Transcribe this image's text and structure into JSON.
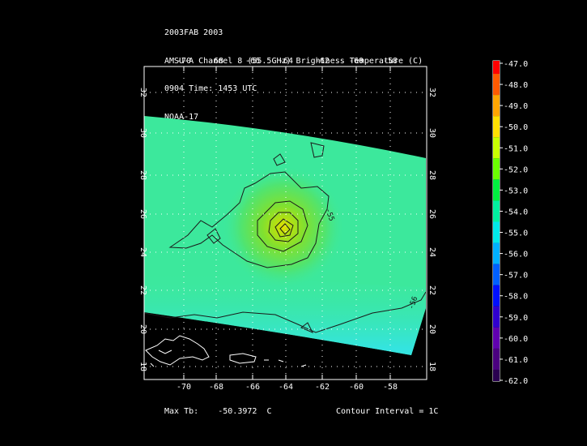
{
  "header": {
    "line1": "2003FAB 2003",
    "line2": "AMSU-A Channel 8 (55.5GHz) Brightness Temperature (C)",
    "line3": "0904 Time: 1453 UTC",
    "line4": "NOAA-17"
  },
  "map": {
    "lon_ticks": [
      "-70",
      "-68",
      "-66",
      "-64",
      "-62",
      "-60",
      "-58"
    ],
    "lat_ticks": [
      "18",
      "20",
      "22",
      "24",
      "26",
      "28",
      "30",
      "32"
    ],
    "contour_labels": [
      "-55",
      "-56"
    ],
    "field_colors": {
      "background": "#3be8a0",
      "core": "#8ce020",
      "peak": "#e8e000",
      "cool_south": "#36e6e6"
    }
  },
  "colorbar": {
    "labels": [
      "-47.0",
      "-48.0",
      "-49.0",
      "-50.0",
      "-51.0",
      "-52.0",
      "-53.0",
      "-54.0",
      "-55.0",
      "-56.0",
      "-57.0",
      "-58.0",
      "-59.0",
      "-60.0",
      "-61.0",
      "-62.0"
    ],
    "colors": [
      "#ff0000",
      "#ff5a00",
      "#ffa500",
      "#ffe000",
      "#c8ff00",
      "#6aff00",
      "#00f040",
      "#00f0a0",
      "#00e8e8",
      "#00b0ff",
      "#0060ff",
      "#0010ff",
      "#3000d0",
      "#6000b0",
      "#4a0080",
      "#2a0050"
    ]
  },
  "footer": {
    "max_tb_label": "Max Tb:",
    "max_tb_value": "-50.3972",
    "max_tb_unit": "C",
    "contour_interval": "Contour Interval = 1C"
  }
}
